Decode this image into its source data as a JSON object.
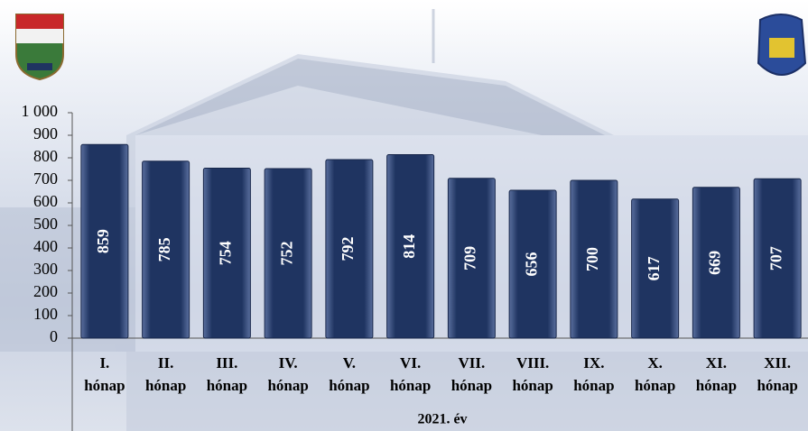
{
  "chart_data": {
    "type": "bar",
    "categories": [
      "I. hónap",
      "II. hónap",
      "III. hónap",
      "IV. hónap",
      "V. hónap",
      "VI. hónap",
      "VII. hónap",
      "VIII. hónap",
      "IX. hónap",
      "X. hónap",
      "XI. hónap",
      "XII. hónap"
    ],
    "values": [
      859,
      785,
      754,
      752,
      792,
      814,
      709,
      656,
      700,
      617,
      669,
      707
    ],
    "color": "#1f3461",
    "x_label": "2021. év",
    "ylim": [
      0,
      1000
    ],
    "yticks": [
      0,
      100,
      200,
      300,
      400,
      500,
      600,
      700,
      800,
      900,
      {
        "value": 1000,
        "label": "1 000"
      }
    ]
  }
}
